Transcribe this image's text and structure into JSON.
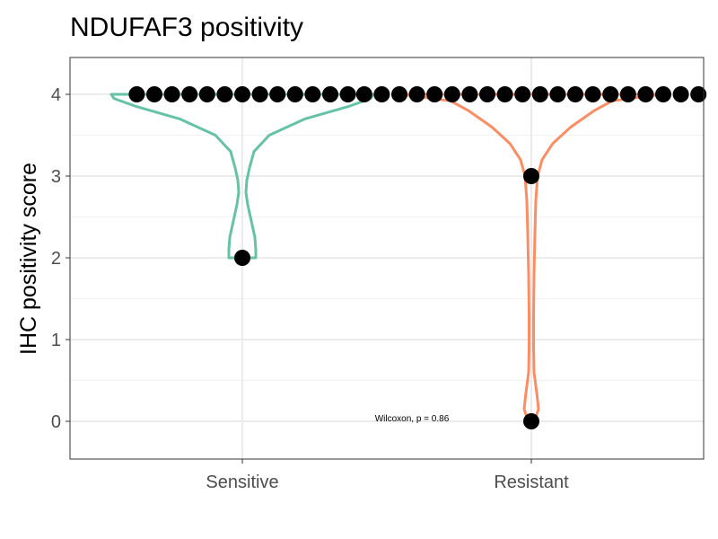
{
  "chart_data": {
    "type": "violin",
    "title": "NDUFAF3 positivity",
    "xlabel": "",
    "ylabel": "IHC positivity score",
    "categories": [
      "Sensitive",
      "Resistant"
    ],
    "y_ticks": [
      0,
      1,
      2,
      3,
      4
    ],
    "ylim": [
      -0.45,
      4.45
    ],
    "grid": true,
    "series": [
      {
        "category": "Sensitive",
        "color": "#66c2a5",
        "points": [
          2,
          4,
          4,
          4,
          4,
          4,
          4,
          4,
          4,
          4,
          4,
          4,
          4,
          4
        ]
      },
      {
        "category": "Resistant",
        "color": "#fc8d62",
        "points": [
          0,
          3,
          4,
          4,
          4,
          4,
          4,
          4,
          4,
          4,
          4,
          4,
          4,
          4,
          4,
          4,
          4,
          4,
          4,
          4,
          4,
          4
        ]
      }
    ],
    "annotation": {
      "text": "Wilcoxon, p = 0.86",
      "x_category": "Resistant",
      "y": 0
    }
  }
}
